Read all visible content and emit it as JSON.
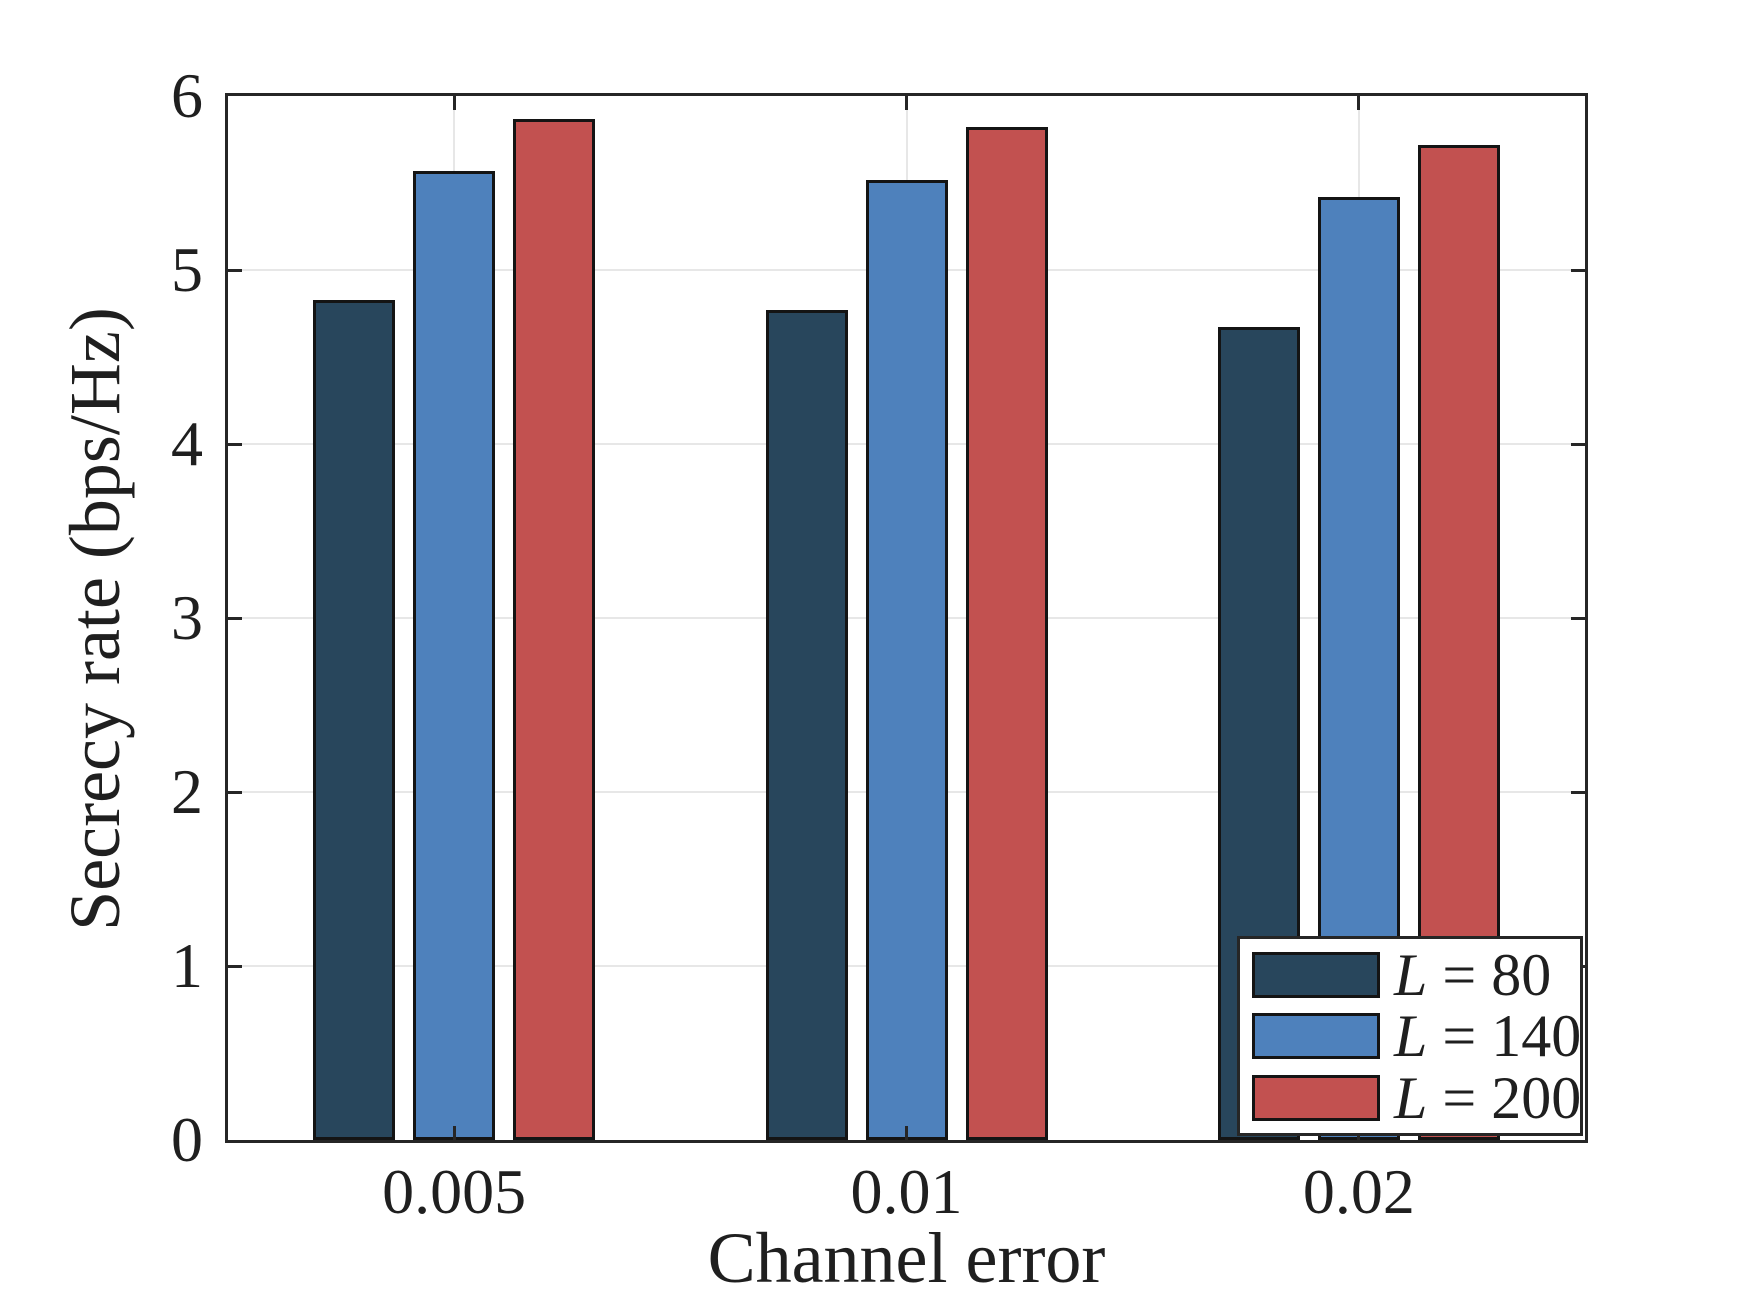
{
  "chart_data": {
    "type": "bar",
    "title": "",
    "xlabel": "Channel error",
    "ylabel": "Secrecy rate (bps/Hz)",
    "categories": [
      "0.005",
      "0.01",
      "0.02"
    ],
    "series": [
      {
        "name": "L = 80",
        "label_var": "L",
        "label_val": "80",
        "color": "#28465c",
        "values": [
          4.83,
          4.77,
          4.67
        ]
      },
      {
        "name": "L = 140",
        "label_var": "L",
        "label_val": "140",
        "color": "#4e81bc",
        "values": [
          5.57,
          5.52,
          5.42
        ]
      },
      {
        "name": "L = 200",
        "label_var": "L",
        "label_val": "200",
        "color": "#c25150",
        "values": [
          5.87,
          5.82,
          5.72
        ]
      }
    ],
    "ylim": [
      0,
      6
    ],
    "yticks": [
      "0",
      "1",
      "2",
      "3",
      "4",
      "5",
      "6"
    ],
    "grid": true,
    "legend_position": "bottom-right",
    "bar_edge_color": "#141414",
    "axis_color": "#262626",
    "grid_color": "#e7e7e7"
  }
}
